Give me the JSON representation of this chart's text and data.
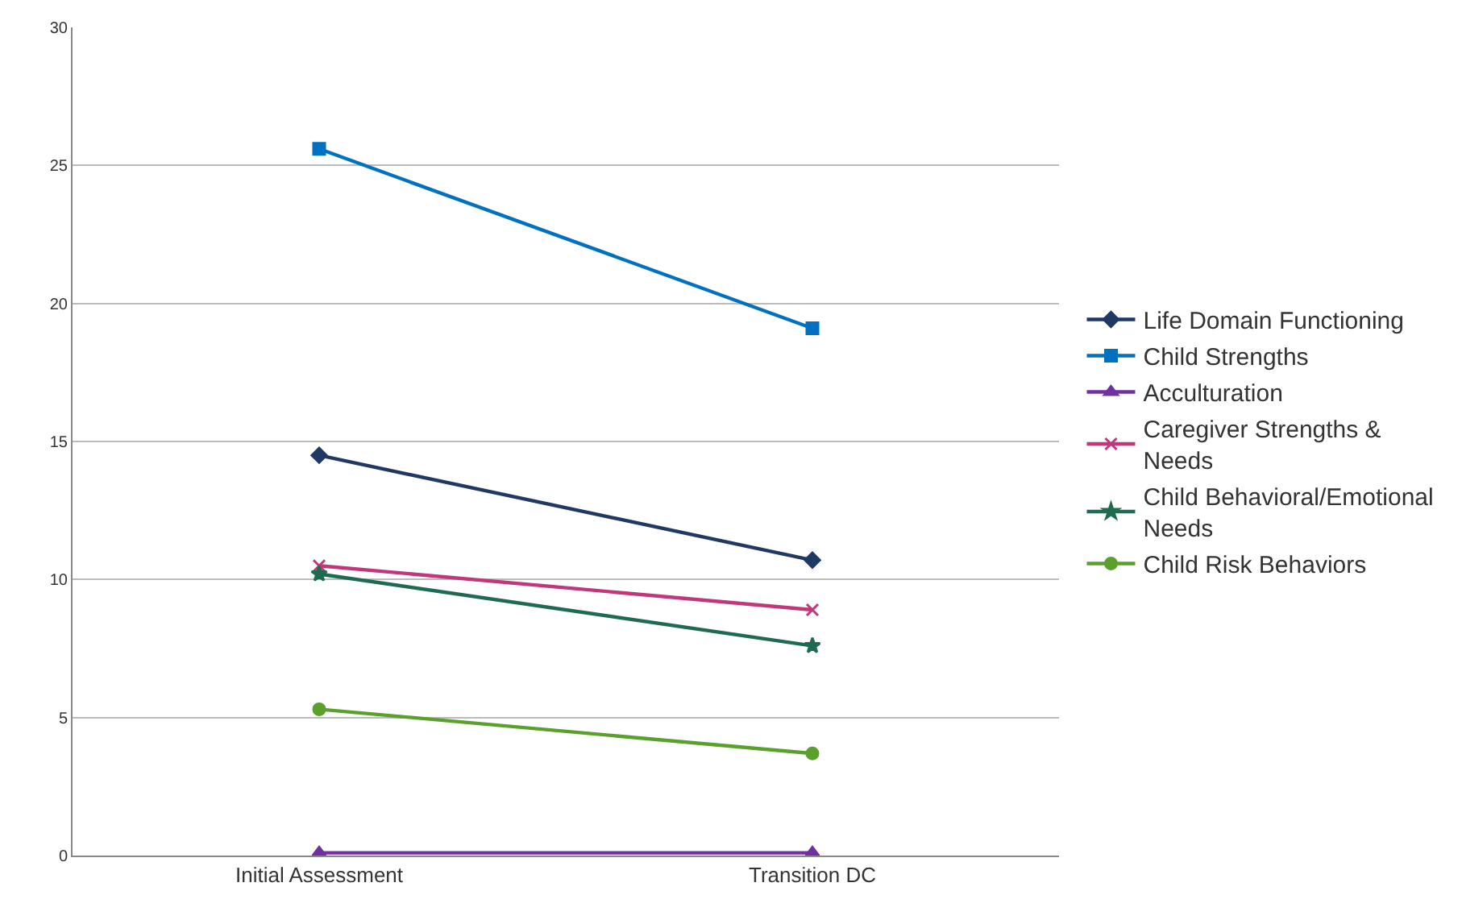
{
  "chart_data": {
    "type": "line",
    "categories": [
      "Initial Assessment",
      "Transition DC"
    ],
    "series": [
      {
        "name": "Life Domain Functioning",
        "color": "#1f3864",
        "marker": "diamond",
        "values": [
          14.5,
          10.7
        ]
      },
      {
        "name": "Child Strengths",
        "color": "#0070c0",
        "marker": "square",
        "values": [
          25.6,
          19.1
        ]
      },
      {
        "name": "Acculturation",
        "color": "#7030a0",
        "marker": "triangle",
        "values": [
          0.1,
          0.1
        ]
      },
      {
        "name": "Caregiver Strengths & Needs",
        "color": "#c0387a",
        "marker": "cross",
        "values": [
          10.5,
          8.9
        ]
      },
      {
        "name": "Child Behavioral/Emotional Needs",
        "color": "#1e6b4f",
        "marker": "star",
        "values": [
          10.2,
          7.6
        ]
      },
      {
        "name": "Child Risk Behaviors",
        "color": "#5aa02c",
        "marker": "circle",
        "values": [
          5.3,
          3.7
        ]
      }
    ],
    "ylim": [
      0,
      30
    ],
    "yticks": [
      0,
      5,
      10,
      15,
      20,
      25,
      30
    ],
    "grid": "y",
    "legend": "right",
    "line_style": "solid"
  }
}
